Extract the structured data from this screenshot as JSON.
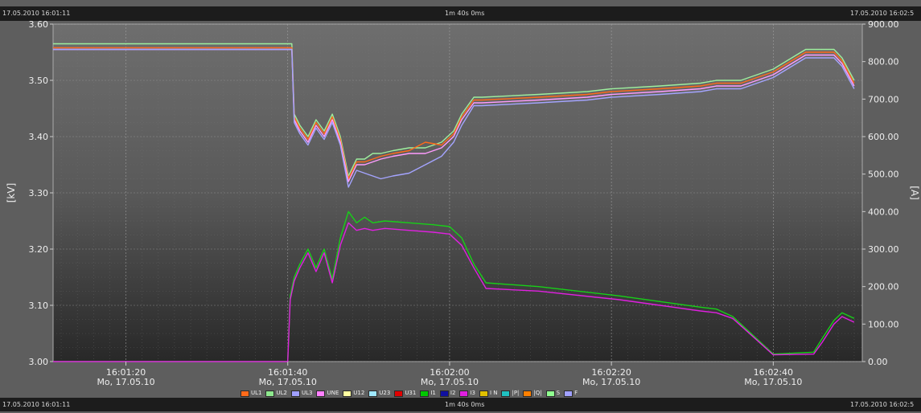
{
  "header": {
    "start_timestamp": "17.05.2010 16:01:11",
    "duration": "1m 40s 0ms",
    "end_timestamp": "17.05.2010 16:02:5"
  },
  "footer": {
    "start_timestamp": "17.05.2010 16:01:11",
    "duration": "1m 40s 0ms",
    "end_timestamp": "17.05.2010 16:02:5"
  },
  "chart_data": {
    "type": "line",
    "y_left": {
      "label": "[kV]",
      "range": [
        3.0,
        3.6
      ],
      "ticks": [
        "3.00",
        "3.10",
        "3.20",
        "3.30",
        "3.40",
        "3.50",
        "3.60"
      ]
    },
    "y_right": {
      "label": "[A]",
      "range": [
        0,
        900
      ],
      "ticks": [
        "0.00",
        "100.00",
        "200.00",
        "300.00",
        "400.00",
        "500.00",
        "600.00",
        "700.00",
        "800.00",
        "900.00"
      ]
    },
    "x_ticks": [
      {
        "time": "16:01:20",
        "date": "Mo, 17.05.10",
        "t": 9
      },
      {
        "time": "16:01:40",
        "date": "Mo, 17.05.10",
        "t": 29
      },
      {
        "time": "16:02:00",
        "date": "Mo, 17.05.10",
        "t": 49
      },
      {
        "time": "16:02:20",
        "date": "Mo, 17.05.10",
        "t": 69
      },
      {
        "time": "16:02:40",
        "date": "Mo, 17.05.10",
        "t": 89
      }
    ],
    "x_range": [
      0,
      100
    ],
    "grid": true,
    "legend_position": "bottom",
    "legend": [
      {
        "name": "UL1",
        "color": "#ff6a1a"
      },
      {
        "name": "UL2",
        "color": "#8ee88e"
      },
      {
        "name": "UL3",
        "color": "#9f9fff"
      },
      {
        "name": "UNE",
        "color": "#ff80ff"
      },
      {
        "name": "U12",
        "color": "#ffffa0"
      },
      {
        "name": "U23",
        "color": "#9fe8ff"
      },
      {
        "name": "U31",
        "color": "#e00000"
      },
      {
        "name": "I1",
        "color": "#00c800"
      },
      {
        "name": "I2",
        "color": "#1010a0"
      },
      {
        "name": "I3",
        "color": "#e020e0"
      },
      {
        "name": "I N",
        "color": "#e0c000"
      },
      {
        "name": "|P|",
        "color": "#20c0c0"
      },
      {
        "name": "|Q|",
        "color": "#ff8000"
      },
      {
        "name": "S",
        "color": "#90ff90"
      },
      {
        "name": "F",
        "color": "#a0a0ff"
      }
    ],
    "series": [
      {
        "name": "UL2",
        "axis": "left",
        "color": "#9ef09e",
        "t": [
          0,
          29.5,
          29.8,
          30.5,
          31.5,
          32.5,
          33.5,
          34.5,
          35.5,
          36.5,
          37.5,
          38.5,
          39.5,
          40.5,
          42,
          44,
          46,
          48,
          49.5,
          50.5,
          52,
          53,
          60,
          66,
          69,
          75,
          80,
          82,
          85,
          89,
          93,
          95,
          96.5,
          97.5,
          99
        ],
        "v": [
          3.565,
          3.565,
          3.44,
          3.42,
          3.4,
          3.43,
          3.41,
          3.44,
          3.4,
          3.33,
          3.36,
          3.36,
          3.37,
          3.37,
          3.375,
          3.38,
          3.38,
          3.39,
          3.41,
          3.44,
          3.47,
          3.47,
          3.475,
          3.48,
          3.485,
          3.49,
          3.495,
          3.5,
          3.5,
          3.52,
          3.555,
          3.555,
          3.555,
          3.54,
          3.5
        ]
      },
      {
        "name": "UL1",
        "axis": "left",
        "color": "#ff6a1a",
        "t": [
          0,
          29.5,
          29.8,
          30.5,
          31.5,
          32.5,
          33.5,
          34.5,
          35.5,
          36.5,
          37.5,
          38.5,
          39.5,
          40.5,
          42,
          44,
          46,
          48,
          49.5,
          50.5,
          52,
          53,
          60,
          66,
          69,
          75,
          80,
          82,
          85,
          89,
          93,
          95,
          96.5,
          97.5,
          99
        ],
        "v": [
          3.558,
          3.558,
          3.435,
          3.415,
          3.395,
          3.425,
          3.405,
          3.435,
          3.395,
          3.325,
          3.355,
          3.355,
          3.36,
          3.365,
          3.37,
          3.375,
          3.39,
          3.385,
          3.405,
          3.435,
          3.465,
          3.465,
          3.47,
          3.475,
          3.48,
          3.485,
          3.49,
          3.495,
          3.495,
          3.515,
          3.55,
          3.55,
          3.55,
          3.535,
          3.495
        ]
      },
      {
        "name": "UNE",
        "axis": "left",
        "color": "#ff9cff",
        "t": [
          0,
          29.5,
          29.8,
          30.5,
          31.5,
          32.5,
          33.5,
          34.5,
          35.5,
          36.5,
          37.5,
          38.5,
          39.5,
          40.5,
          42,
          44,
          46,
          48,
          49.5,
          50.5,
          52,
          53,
          60,
          66,
          69,
          75,
          80,
          82,
          85,
          89,
          93,
          95,
          96.5,
          97.5,
          99
        ],
        "v": [
          3.555,
          3.555,
          3.43,
          3.41,
          3.39,
          3.42,
          3.4,
          3.43,
          3.39,
          3.32,
          3.35,
          3.35,
          3.355,
          3.36,
          3.365,
          3.37,
          3.37,
          3.38,
          3.4,
          3.43,
          3.46,
          3.46,
          3.465,
          3.47,
          3.475,
          3.48,
          3.485,
          3.49,
          3.49,
          3.51,
          3.545,
          3.545,
          3.545,
          3.53,
          3.49
        ]
      },
      {
        "name": "UL3",
        "axis": "left",
        "color": "#a4a4ff",
        "t": [
          0,
          29.5,
          29.8,
          30.5,
          31.5,
          32.5,
          33.5,
          34.5,
          35.5,
          36.5,
          37.5,
          38.5,
          39.5,
          40.5,
          42,
          44,
          46,
          48,
          49.5,
          50.5,
          52,
          53,
          60,
          66,
          69,
          75,
          80,
          82,
          85,
          89,
          93,
          95,
          96.5,
          97.5,
          99
        ],
        "v": [
          3.555,
          3.555,
          3.425,
          3.405,
          3.385,
          3.415,
          3.395,
          3.425,
          3.385,
          3.31,
          3.34,
          3.335,
          3.33,
          3.325,
          3.33,
          3.335,
          3.35,
          3.365,
          3.39,
          3.42,
          3.455,
          3.455,
          3.46,
          3.465,
          3.47,
          3.475,
          3.48,
          3.485,
          3.485,
          3.505,
          3.54,
          3.54,
          3.54,
          3.525,
          3.485
        ]
      },
      {
        "name": "I1",
        "axis": "right",
        "color": "#18d018",
        "t": [
          0,
          29,
          29.3,
          29.8,
          30.5,
          31.5,
          32.5,
          33.5,
          34.5,
          35.5,
          36.5,
          37.5,
          38.5,
          39.5,
          41,
          44,
          47,
          49,
          50.5,
          52,
          53.5,
          60,
          70,
          75,
          80,
          82,
          84,
          89,
          94,
          95,
          96.5,
          97.5,
          99
        ],
        "v": [
          0,
          0,
          175,
          225,
          260,
          300,
          250,
          300,
          220,
          330,
          400,
          370,
          385,
          370,
          375,
          370,
          365,
          360,
          330,
          260,
          210,
          200,
          175,
          160,
          145,
          140,
          120,
          20,
          25,
          60,
          110,
          130,
          115
        ]
      },
      {
        "name": "I3",
        "axis": "right",
        "color": "#e020e0",
        "t": [
          0,
          29,
          29.3,
          29.8,
          30.5,
          31.5,
          32.5,
          33.5,
          34.5,
          35.5,
          36.5,
          37.5,
          38.5,
          39.5,
          41,
          44,
          47,
          49,
          50.5,
          52,
          53.5,
          60,
          70,
          75,
          80,
          82,
          84,
          89,
          94,
          95,
          96.5,
          97.5,
          99
        ],
        "v": [
          0,
          0,
          165,
          215,
          250,
          290,
          240,
          290,
          210,
          310,
          370,
          350,
          355,
          350,
          355,
          350,
          345,
          340,
          310,
          250,
          195,
          188,
          165,
          150,
          135,
          130,
          115,
          18,
          20,
          50,
          100,
          120,
          105
        ]
      }
    ]
  }
}
